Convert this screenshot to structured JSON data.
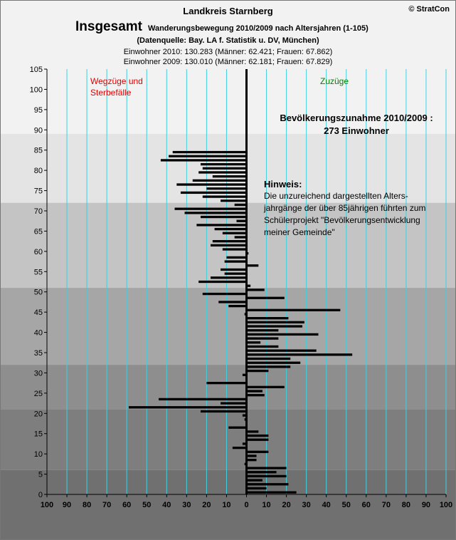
{
  "header": {
    "district": "Landkreis Starnberg",
    "copyright": "© StratCon",
    "big_title": "Insgesamt",
    "subtitle": "Wanderungsbewegung 2010/2009  nach Altersjahren (1-105)",
    "source": "(Datenquelle: Bay. LA f. Statistik u. DV, München)",
    "pop2010": "Einwohner 2010: 130.283  (Männer: 62.421; Frauen: 67.862)",
    "pop2009": "Einwohner 2009: 130.010  (Männer: 62.181; Frauen: 67.829)"
  },
  "annotations": {
    "left_line1": "Wegzüge und",
    "left_line2": "Sterbefälle",
    "right": "Zuzüge",
    "increase_line1": "Bevölkerungszunahme 2010/2009 :",
    "increase_line2": "273 Einwohner",
    "hint_title": "Hinweis:",
    "hint_lines": [
      "Die unzureichend dargestellten Alters-",
      "jahrgänge der über 85jährigen führten zum",
      "Schülerprojekt \"Bevölkerungsentwicklung",
      "meiner Gemeinde\""
    ]
  },
  "colors": {
    "bar": "#000000",
    "gridline": "#3fd0e0",
    "band_light": "#e4e4e4",
    "bands": [
      "#707070",
      "#7e7e7e",
      "#8e8e8e",
      "#a6a6a6",
      "#c4c4c4",
      "#e4e4e4"
    ],
    "left_label": "#e00000",
    "right_label": "#008000"
  },
  "chart_data": {
    "type": "bar",
    "orientation": "horizontal",
    "xlim": [
      -100,
      100
    ],
    "ylim": [
      0,
      105
    ],
    "xticks": [
      -100,
      -90,
      -80,
      -70,
      -60,
      -50,
      -40,
      -30,
      -20,
      -10,
      0,
      10,
      20,
      30,
      40,
      50,
      60,
      70,
      80,
      90,
      100
    ],
    "xtick_labels": [
      "100",
      "90",
      "80",
      "70",
      "60",
      "50",
      "40",
      "30",
      "20",
      "10",
      "0",
      "10",
      "20",
      "30",
      "40",
      "50",
      "60",
      "70",
      "80",
      "90",
      "100"
    ],
    "yticks": [
      0,
      5,
      10,
      15,
      20,
      25,
      30,
      35,
      40,
      45,
      50,
      55,
      60,
      65,
      70,
      75,
      80,
      85,
      90,
      95,
      100,
      105
    ],
    "age_bands": [
      [
        0,
        6
      ],
      [
        6,
        21
      ],
      [
        21,
        32
      ],
      [
        32,
        51
      ],
      [
        51,
        72
      ],
      [
        72,
        89
      ]
    ],
    "ages": [
      0,
      1,
      2,
      3,
      4,
      5,
      6,
      7,
      8,
      9,
      10,
      11,
      12,
      13,
      14,
      15,
      16,
      17,
      18,
      19,
      20,
      21,
      22,
      23,
      24,
      25,
      26,
      27,
      28,
      29,
      30,
      31,
      32,
      33,
      34,
      35,
      36,
      37,
      38,
      39,
      40,
      41,
      42,
      43,
      44,
      45,
      46,
      47,
      48,
      49,
      50,
      51,
      52,
      53,
      54,
      55,
      56,
      57,
      58,
      59,
      60,
      61,
      62,
      63,
      64,
      65,
      66,
      67,
      68,
      69,
      70,
      71,
      72,
      73,
      74,
      75,
      76,
      77,
      78,
      79,
      80,
      81,
      82,
      83,
      84,
      85,
      86
    ],
    "values": [
      25,
      10,
      21,
      8,
      20,
      15,
      20,
      -1,
      5,
      5,
      11,
      -7,
      -2,
      11,
      11,
      6,
      -9,
      0,
      -1,
      -2,
      -23,
      -59,
      -13,
      -44,
      9,
      8,
      19,
      -20,
      0,
      -2,
      11,
      22,
      27,
      22,
      53,
      35,
      16,
      7,
      16,
      36,
      16,
      28,
      29,
      21,
      -1,
      47,
      -9,
      -14,
      19,
      -22,
      9,
      2,
      -24,
      -18,
      -11,
      -13,
      6,
      -11,
      -10,
      1,
      -12,
      -18,
      -17,
      -6,
      -12,
      -16,
      -25,
      -5,
      -23,
      -31,
      -36,
      -6,
      -13,
      -22,
      -33,
      -20,
      -35,
      -27,
      -17,
      -24,
      -22,
      -23,
      -43,
      -39,
      -37,
      0,
      0
    ]
  }
}
